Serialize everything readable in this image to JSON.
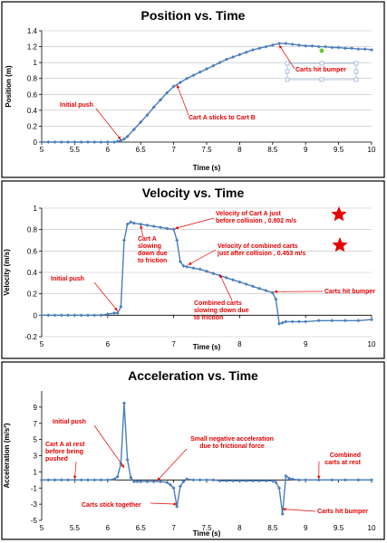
{
  "chart_data": [
    {
      "type": "line",
      "title": "Position vs. Time",
      "xlabel": "Time (s)",
      "ylabel": "Position (m)",
      "xlim": [
        5,
        10
      ],
      "ylim": [
        0,
        1.4
      ],
      "xticks": [
        "5",
        "5.5",
        "6",
        "6.5",
        "7",
        "7.5",
        "8",
        "8.5",
        "9",
        "9.5",
        "10"
      ],
      "yticks": [
        "0",
        "0.2",
        "0.4",
        "0.6",
        "0.8",
        "1",
        "1.2",
        "1.4"
      ],
      "grid": "horizontal",
      "series": [
        {
          "color": "#4a7ebb",
          "x": [
            5.0,
            5.1,
            5.2,
            5.3,
            5.4,
            5.5,
            5.6,
            5.7,
            5.8,
            5.9,
            6.0,
            6.1,
            6.15,
            6.2,
            6.25,
            6.3,
            6.4,
            6.5,
            6.6,
            6.7,
            6.8,
            6.9,
            7.0,
            7.1,
            7.2,
            7.3,
            7.4,
            7.5,
            7.6,
            7.7,
            7.8,
            7.9,
            8.0,
            8.1,
            8.2,
            8.3,
            8.4,
            8.5,
            8.6,
            8.7,
            8.8,
            8.9,
            9.0,
            9.1,
            9.2,
            9.3,
            9.4,
            9.5,
            9.6,
            9.7,
            9.8,
            9.9,
            10.0
          ],
          "y": [
            0.0,
            0.0,
            0.0,
            0.0,
            0.0,
            0.0,
            0.0,
            0.0,
            0.0,
            0.0,
            0.0,
            0.0,
            0.01,
            0.02,
            0.04,
            0.07,
            0.16,
            0.25,
            0.34,
            0.44,
            0.53,
            0.62,
            0.7,
            0.75,
            0.8,
            0.84,
            0.88,
            0.92,
            0.96,
            1.0,
            1.04,
            1.07,
            1.1,
            1.13,
            1.16,
            1.18,
            1.2,
            1.22,
            1.24,
            1.24,
            1.23,
            1.22,
            1.21,
            1.21,
            1.2,
            1.2,
            1.19,
            1.19,
            1.18,
            1.18,
            1.17,
            1.17,
            1.16
          ]
        }
      ],
      "annotations": [
        {
          "text": "Initial push"
        },
        {
          "text": "Cart A sticks to Cart B"
        },
        {
          "text": "Carts hit bumper"
        }
      ]
    },
    {
      "type": "line",
      "title": "Velocity vs. Time",
      "xlabel": "Time (s)",
      "ylabel": "Velocity (m/s)",
      "xlim": [
        5,
        10
      ],
      "ylim": [
        -0.2,
        1
      ],
      "xticks": [
        "5",
        "6",
        "7",
        "8",
        "9",
        "10"
      ],
      "yticks": [
        "-0.2",
        "0",
        "0.2",
        "0.4",
        "0.6",
        "0.8",
        "1"
      ],
      "grid": "horizontal",
      "series": [
        {
          "color": "#4a7ebb",
          "x": [
            5.0,
            5.1,
            5.2,
            5.3,
            5.4,
            5.5,
            5.6,
            5.7,
            5.8,
            5.9,
            6.0,
            6.1,
            6.15,
            6.2,
            6.25,
            6.3,
            6.35,
            6.4,
            6.5,
            6.6,
            6.7,
            6.8,
            6.9,
            7.0,
            7.05,
            7.1,
            7.15,
            7.2,
            7.3,
            7.4,
            7.5,
            7.6,
            7.7,
            7.8,
            7.9,
            8.0,
            8.1,
            8.2,
            8.3,
            8.4,
            8.5,
            8.55,
            8.6,
            8.65,
            8.7,
            8.8,
            8.9,
            9.0,
            9.2,
            9.4,
            9.6,
            9.8,
            10.0
          ],
          "y": [
            0.0,
            0.0,
            0.0,
            0.0,
            0.0,
            0.0,
            0.0,
            0.0,
            0.0,
            0.0,
            0.01,
            0.02,
            0.02,
            0.08,
            0.7,
            0.85,
            0.87,
            0.86,
            0.85,
            0.84,
            0.83,
            0.82,
            0.81,
            0.802,
            0.7,
            0.5,
            0.46,
            0.453,
            0.44,
            0.43,
            0.41,
            0.39,
            0.37,
            0.35,
            0.33,
            0.31,
            0.29,
            0.27,
            0.25,
            0.23,
            0.21,
            0.15,
            -0.08,
            -0.07,
            -0.06,
            -0.06,
            -0.06,
            -0.06,
            -0.05,
            -0.05,
            -0.05,
            -0.05,
            -0.04
          ]
        }
      ],
      "annotations": [
        {
          "text": "Velocity of Cart A just before collision , 0.802 m/s"
        },
        {
          "text": "Velocity of combined carts just after collision ,  0.453 m/s"
        },
        {
          "text": "Initial push"
        },
        {
          "text": "Cart A slowing down due to friction"
        },
        {
          "text": "Combined carts slowing down due to friction"
        },
        {
          "text": "Carts hit bumper"
        }
      ]
    },
    {
      "type": "line",
      "title": "Acceleration vs. Time",
      "xlabel": "Time (s)",
      "ylabel": "Acceleration (m/s²)",
      "xlim": [
        5,
        10
      ],
      "ylim": [
        -5,
        11
      ],
      "xticks": [
        "5",
        "5.5",
        "6",
        "6.5",
        "7",
        "7.5",
        "8",
        "8.5",
        "9",
        "9.5",
        "10"
      ],
      "yticks": [
        "-5",
        "-3",
        "-1",
        "1",
        "3",
        "5",
        "7",
        "9"
      ],
      "grid": "none",
      "series": [
        {
          "color": "#4a7ebb",
          "x": [
            5.0,
            5.1,
            5.2,
            5.3,
            5.4,
            5.5,
            5.6,
            5.7,
            5.8,
            5.9,
            6.0,
            6.1,
            6.15,
            6.2,
            6.25,
            6.3,
            6.35,
            6.4,
            6.45,
            6.5,
            6.6,
            6.7,
            6.8,
            6.9,
            6.95,
            7.0,
            7.05,
            7.1,
            7.15,
            7.2,
            7.3,
            7.4,
            7.5,
            7.6,
            7.7,
            7.8,
            7.9,
            8.0,
            8.1,
            8.2,
            8.3,
            8.4,
            8.5,
            8.55,
            8.6,
            8.65,
            8.7,
            8.75,
            8.8,
            8.9,
            9.0,
            9.2,
            9.4,
            9.6,
            9.8,
            10.0
          ],
          "y": [
            0.0,
            0.0,
            0.0,
            0.0,
            0.0,
            0.0,
            0.0,
            0.0,
            0.0,
            0.0,
            0.0,
            0.1,
            0.4,
            2.0,
            9.5,
            2.5,
            0.3,
            -0.2,
            -0.2,
            -0.2,
            -0.2,
            -0.2,
            -0.2,
            -0.3,
            -0.6,
            -1.0,
            -3.3,
            -0.8,
            -0.2,
            0.1,
            0.0,
            0.0,
            0.0,
            0.0,
            -0.1,
            -0.1,
            -0.1,
            -0.1,
            -0.1,
            -0.1,
            -0.1,
            -0.1,
            -0.1,
            -0.3,
            -1.0,
            -4.2,
            0.5,
            0.2,
            0.1,
            0.0,
            0.0,
            0.0,
            0.0,
            0.0,
            0.0,
            0.0
          ]
        }
      ],
      "annotations": [
        {
          "text": "Initial push"
        },
        {
          "text": "Cart A at rest before being pushed"
        },
        {
          "text": "Small negative acceleration due to frictional force"
        },
        {
          "text": "Combined carts at rest"
        },
        {
          "text": "Carts stick together"
        },
        {
          "text": "Carts hit bumper"
        }
      ]
    }
  ]
}
